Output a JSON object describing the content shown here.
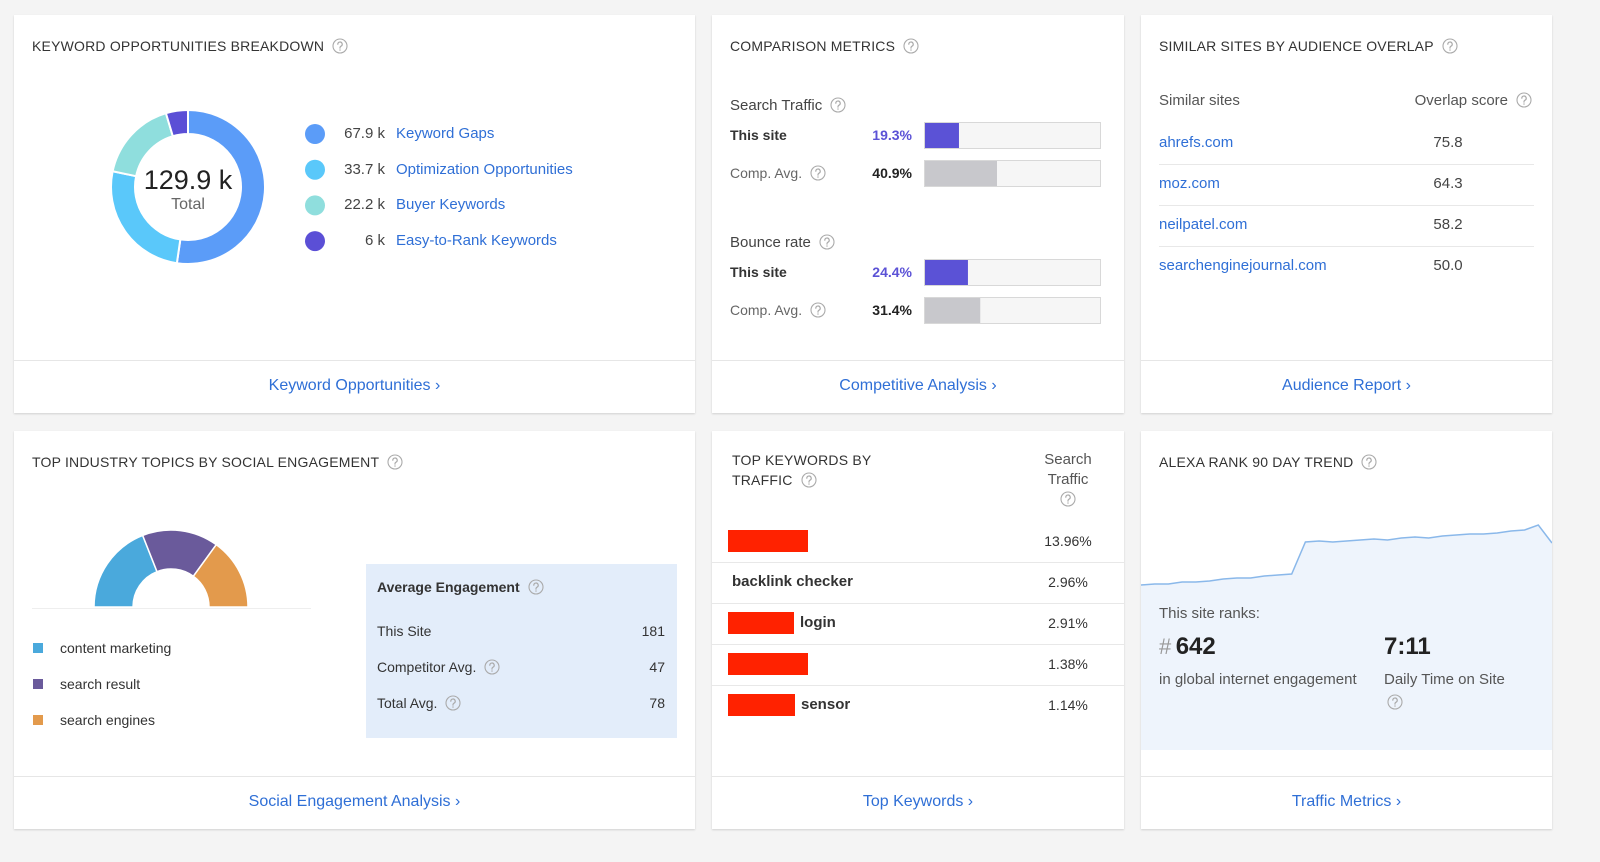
{
  "keyword_opportunities": {
    "title": "KEYWORD OPPORTUNITIES BREAKDOWN",
    "total": "129.9 k",
    "total_label": "Total",
    "items": [
      {
        "name": "Keyword Gaps",
        "value": 67.9,
        "value_label": "67.9 k",
        "color": "#5b9cf8"
      },
      {
        "name": "Optimization Opportunities",
        "value": 33.7,
        "value_label": "33.7 k",
        "color": "#5ac8fa"
      },
      {
        "name": "Buyer Keywords",
        "value": 22.2,
        "value_label": "22.2 k",
        "color": "#8fdedd"
      },
      {
        "name": "Easy-to-Rank Keywords",
        "value": 6,
        "value_label": "6 k",
        "color": "#5b4fd6"
      }
    ],
    "link": "Keyword Opportunities ›"
  },
  "comparison_metrics": {
    "title": "COMPARISON METRICS",
    "xlim": [
      0,
      100
    ],
    "metrics": [
      {
        "name": "Search Traffic",
        "rows": [
          {
            "label": "This site",
            "value": 19.3,
            "value_label": "19.3%",
            "color": "#5b52d6"
          },
          {
            "label": "Comp. Avg.",
            "value": 40.9,
            "value_label": "40.9%",
            "color": "#c8c8cc"
          }
        ]
      },
      {
        "name": "Bounce rate",
        "rows": [
          {
            "label": "This site",
            "value": 24.4,
            "value_label": "24.4%",
            "color": "#5b52d6"
          },
          {
            "label": "Comp. Avg.",
            "value": 31.4,
            "value_label": "31.4%",
            "color": "#c8c8cc"
          }
        ]
      }
    ],
    "link": "Competitive Analysis ›"
  },
  "similar_sites": {
    "title": "SIMILAR SITES BY AUDIENCE OVERLAP",
    "columns": [
      "Similar sites",
      "Overlap score"
    ],
    "rows": [
      [
        "ahrefs.com",
        "75.8"
      ],
      [
        "moz.com",
        "64.3"
      ],
      [
        "neilpatel.com",
        "58.2"
      ],
      [
        "searchenginejournal.com",
        "50.0"
      ]
    ],
    "link": "Audience Report ›"
  },
  "social_engagement": {
    "title": "TOP INDUSTRY TOPICS BY SOCIAL ENGAGEMENT",
    "topics": [
      {
        "name": "content marketing",
        "value": 38,
        "color": "#4aa9dc"
      },
      {
        "name": "search result",
        "value": 32,
        "color": "#6a5a9b"
      },
      {
        "name": "search engines",
        "value": 30,
        "color": "#e39a4c"
      }
    ],
    "average": {
      "title": "Average Engagement",
      "rows": [
        [
          "This Site",
          "181"
        ],
        [
          "Competitor Avg.",
          "47"
        ],
        [
          "Total Avg.",
          "78"
        ]
      ]
    },
    "link": "Social Engagement Analysis ›"
  },
  "top_keywords": {
    "title": "TOP KEYWORDS BY TRAFFIC",
    "column": "Search Traffic",
    "rows": [
      {
        "keyword": null,
        "traffic": "13.96%"
      },
      {
        "keyword": "backlink checker",
        "traffic": "2.96%"
      },
      {
        "keyword": "login",
        "traffic": "2.91%"
      },
      {
        "keyword": null,
        "traffic": "1.38%"
      },
      {
        "keyword": "sensor",
        "traffic": "1.14%"
      }
    ],
    "link": "Top Keywords ›"
  },
  "alexa_rank": {
    "title": "ALEXA RANK 90 DAY TREND",
    "trend": {
      "values": [
        15,
        16,
        16,
        18,
        18,
        19,
        21,
        22,
        22,
        24,
        25,
        26,
        58,
        59,
        58,
        59,
        60,
        61,
        60,
        62,
        63,
        62,
        64,
        65,
        66,
        66,
        67,
        69,
        70,
        75,
        57
      ],
      "ylim": [
        0,
        100
      ],
      "color": "#8ab8ea"
    },
    "ranks_label": "This site ranks:",
    "rank_symbol": "#",
    "rank": "642",
    "rank_label": "in global internet engagement",
    "time": "7:11",
    "time_label": "Daily Time on Site",
    "link": "Traffic Metrics ›"
  }
}
